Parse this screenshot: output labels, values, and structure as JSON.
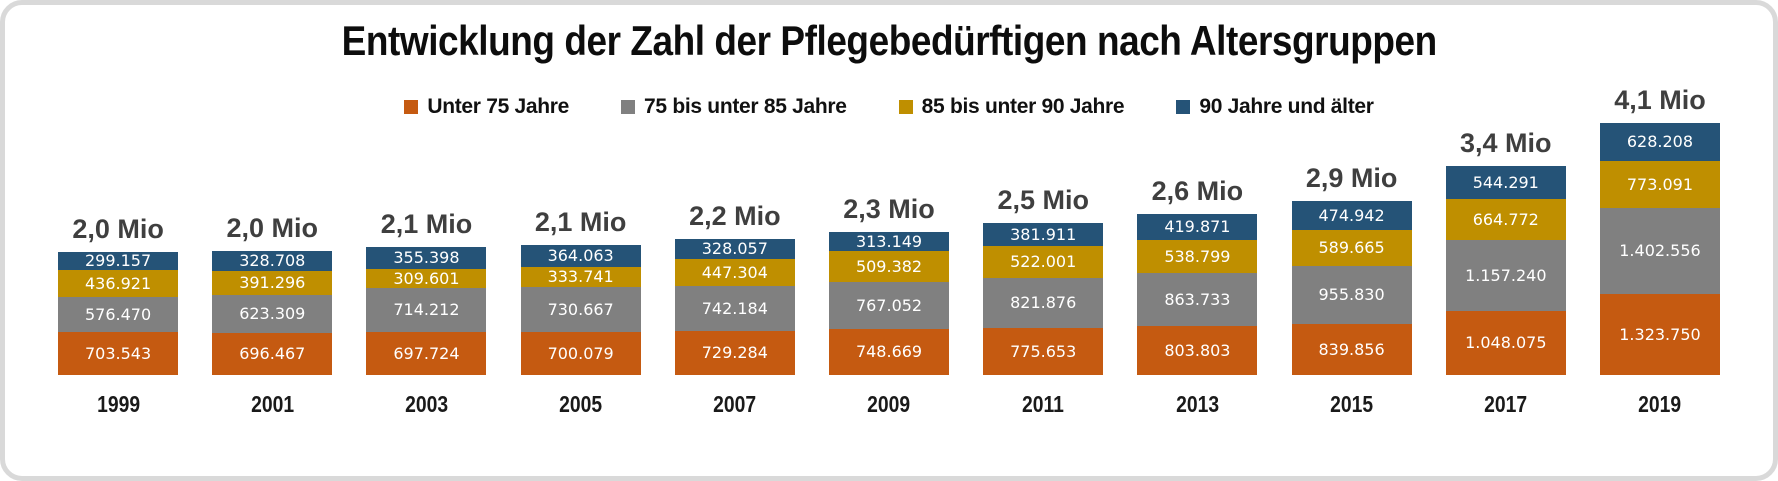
{
  "title": "Entwicklung der Zahl der Pflegebedürftigen nach Altersgruppen",
  "colors": {
    "under_75": "#C55A11",
    "age_75_85": "#808080",
    "age_85_90": "#BF8F00",
    "age_90_plus": "#255377",
    "total_label": "#3F3F3F",
    "card_border": "#D9D9D9"
  },
  "chart_data": {
    "type": "bar",
    "stacked": true,
    "legend_position": "top",
    "grid": false,
    "xlabel": "",
    "ylabel": "",
    "ylim": [
      0,
      4500000
    ],
    "categories": [
      "1999",
      "2001",
      "2003",
      "2005",
      "2007",
      "2009",
      "2011",
      "2013",
      "2015",
      "2017",
      "2019"
    ],
    "series": [
      {
        "name": "Unter 75 Jahre",
        "color": "#C55A11",
        "values": [
          703543,
          696467,
          697724,
          700079,
          729284,
          748669,
          775653,
          803803,
          839856,
          1048075,
          1323750
        ]
      },
      {
        "name": "75 bis unter 85 Jahre",
        "color": "#808080",
        "values": [
          576470,
          623309,
          714212,
          730667,
          742184,
          767052,
          821876,
          863733,
          955830,
          1157240,
          1402556
        ]
      },
      {
        "name": "85 bis unter 90 Jahre",
        "color": "#BF8F00",
        "values": [
          436921,
          391296,
          309601,
          333741,
          447304,
          509382,
          522001,
          538799,
          589665,
          664772,
          773091
        ]
      },
      {
        "name": "90 Jahre und älter",
        "color": "#255377",
        "values": [
          299157,
          328708,
          355398,
          364063,
          328057,
          313149,
          381911,
          419871,
          474942,
          544291,
          628208
        ]
      }
    ],
    "totals": [
      "2,0 Mio",
      "2,0 Mio",
      "2,1 Mio",
      "2,1 Mio",
      "2,2 Mio",
      "2,3 Mio",
      "2,5 Mio",
      "2,6 Mio",
      "2,9 Mio",
      "3,4 Mio",
      "4,1 Mio"
    ]
  }
}
